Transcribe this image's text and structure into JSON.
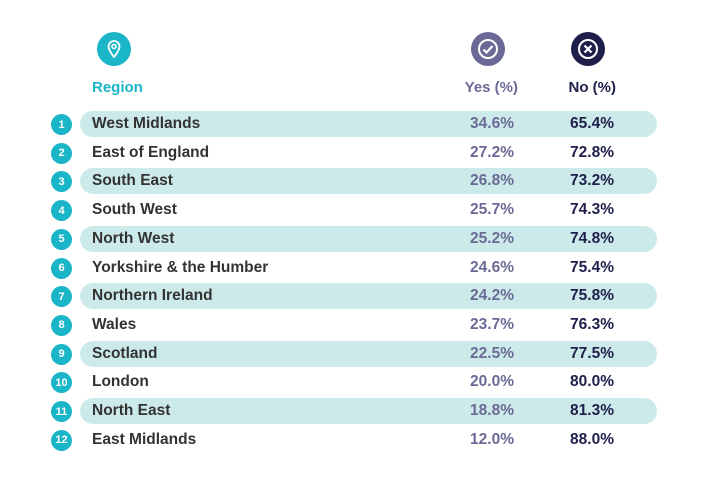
{
  "chart_data": {
    "type": "table",
    "columns": [
      "Region",
      "Yes (%)",
      "No (%)"
    ],
    "icons": {
      "region": "location-pin-icon",
      "yes": "check-circle-icon",
      "no": "x-circle-icon"
    },
    "colors": {
      "accent": "#1bb5c8",
      "yes": "#6b6a96",
      "no": "#1e1f4b",
      "band": "#cdeaea"
    },
    "rows": [
      {
        "rank": "1",
        "region": "West Midlands",
        "yes": "34.6%",
        "no": "65.4%"
      },
      {
        "rank": "2",
        "region": "East of England",
        "yes": "27.2%",
        "no": "72.8%"
      },
      {
        "rank": "3",
        "region": "South East",
        "yes": "26.8%",
        "no": "73.2%"
      },
      {
        "rank": "4",
        "region": "South West",
        "yes": "25.7%",
        "no": "74.3%"
      },
      {
        "rank": "5",
        "region": "North West",
        "yes": "25.2%",
        "no": "74.8%"
      },
      {
        "rank": "6",
        "region": "Yorkshire & the Humber",
        "yes": "24.6%",
        "no": "75.4%"
      },
      {
        "rank": "7",
        "region": "Northern Ireland",
        "yes": "24.2%",
        "no": "75.8%"
      },
      {
        "rank": "8",
        "region": "Wales",
        "yes": "23.7%",
        "no": "76.3%"
      },
      {
        "rank": "9",
        "region": "Scotland",
        "yes": "22.5%",
        "no": "77.5%"
      },
      {
        "rank": "10",
        "region": "London",
        "yes": "20.0%",
        "no": "80.0%"
      },
      {
        "rank": "11",
        "region": "North East",
        "yes": "18.8%",
        "no": "81.3%"
      },
      {
        "rank": "12",
        "region": "East Midlands",
        "yes": "12.0%",
        "no": "88.0%"
      }
    ]
  }
}
